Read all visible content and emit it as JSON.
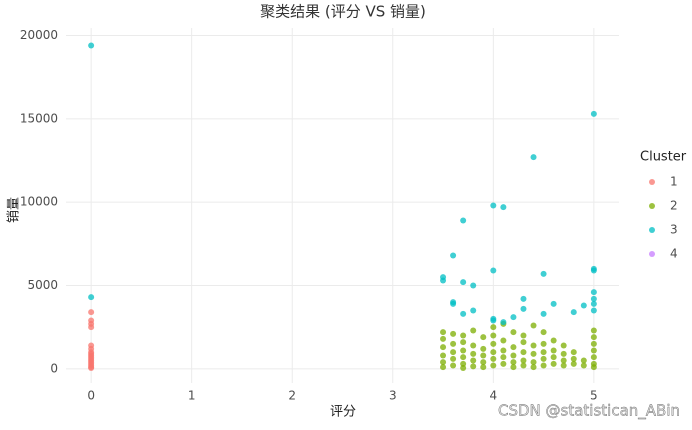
{
  "chart_data": {
    "type": "scatter",
    "title": "聚类结果 (评分 VS 销量)",
    "x_label": "评分",
    "y_label": "销量",
    "legend_title": "Cluster",
    "legend_position": "right",
    "grid": true,
    "watermark": "CSDN @statistican_ABin",
    "xlim": [
      -0.25,
      5.25
    ],
    "xticks": [
      0,
      1,
      2,
      3,
      4,
      5
    ],
    "ylim": [
      -850,
      20450
    ],
    "yticks": [
      0,
      5000,
      10000,
      15000,
      20000
    ],
    "series": [
      {
        "name": "1",
        "color": "#F8766D",
        "x": [
          0,
          0,
          0,
          0,
          0,
          0,
          0,
          0,
          0,
          0,
          0,
          0,
          0,
          0,
          0,
          0,
          0
        ],
        "y": [
          3400,
          2900,
          2700,
          2500,
          1400,
          1200,
          1000,
          900,
          800,
          700,
          600,
          500,
          400,
          300,
          200,
          100,
          50
        ]
      },
      {
        "name": "2",
        "color": "#7CAE00",
        "x": [
          3.5,
          3.5,
          3.5,
          3.5,
          3.5,
          3.5,
          3.6,
          3.6,
          3.6,
          3.6,
          3.6,
          3.7,
          3.7,
          3.7,
          3.7,
          3.7,
          3.7,
          3.8,
          3.8,
          3.8,
          3.8,
          3.8,
          3.9,
          3.9,
          3.9,
          3.9,
          3.9,
          4.0,
          4.0,
          4.0,
          4.0,
          4.0,
          4.0,
          4.1,
          4.1,
          4.1,
          4.1,
          4.1,
          4.2,
          4.2,
          4.2,
          4.2,
          4.2,
          4.3,
          4.3,
          4.3,
          4.3,
          4.3,
          4.4,
          4.4,
          4.4,
          4.4,
          4.4,
          4.5,
          4.5,
          4.5,
          4.5,
          4.5,
          4.6,
          4.6,
          4.6,
          4.6,
          4.7,
          4.7,
          4.7,
          4.7,
          4.8,
          4.8,
          4.8,
          4.9,
          4.9,
          5.0,
          5.0,
          5.0,
          5.0,
          5.0,
          5.0,
          5.0
        ],
        "y": [
          2200,
          1800,
          1300,
          800,
          400,
          100,
          2100,
          1500,
          1000,
          600,
          200,
          2000,
          1600,
          1100,
          700,
          300,
          50,
          2300,
          1400,
          900,
          500,
          150,
          1900,
          1200,
          800,
          400,
          100,
          2500,
          2000,
          1500,
          1000,
          600,
          200,
          2700,
          1700,
          1100,
          700,
          300,
          2200,
          1300,
          800,
          400,
          100,
          2000,
          1600,
          1000,
          500,
          200,
          2600,
          1400,
          900,
          400,
          100,
          2200,
          1500,
          1000,
          600,
          200,
          1700,
          1100,
          700,
          300,
          1400,
          900,
          500,
          200,
          1000,
          600,
          300,
          500,
          200,
          2300,
          1900,
          1500,
          1100,
          700,
          300,
          100
        ]
      },
      {
        "name": "3",
        "color": "#00BFC4",
        "x": [
          0,
          0,
          5,
          4.4,
          3.7,
          4,
          4.1,
          3.6,
          4,
          3.5,
          3.5,
          3.7,
          3.8,
          4.5,
          5,
          5,
          3.6,
          3.6,
          4.3,
          4.6,
          4.9,
          5,
          5,
          5,
          5,
          3.8,
          4,
          4,
          4.2,
          4.3,
          4.5,
          4.8,
          3.7,
          4.1
        ],
        "y": [
          19400,
          4300,
          15300,
          12700,
          8900,
          9800,
          9700,
          6800,
          5900,
          5500,
          5300,
          5200,
          5000,
          5700,
          6000,
          5900,
          4000,
          3900,
          4200,
          3900,
          3800,
          4600,
          4200,
          3900,
          3500,
          3500,
          3000,
          2900,
          3100,
          3600,
          3300,
          3400,
          3300,
          2800
        ]
      },
      {
        "name": "4",
        "color": "#C77CFF",
        "x": [],
        "y": []
      }
    ]
  }
}
